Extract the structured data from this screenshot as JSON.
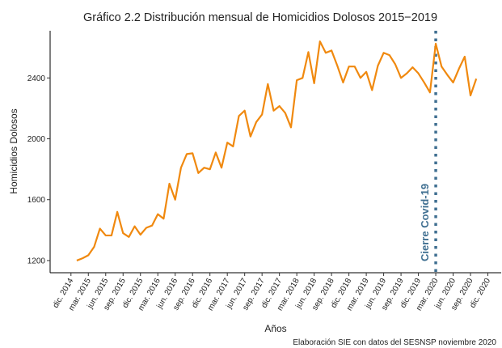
{
  "chart_data": {
    "type": "line",
    "title": "Gráfico 2.2 Distribución mensual de Homicidios Dolosos 2015−2019",
    "x_label": "Años",
    "y_label": "Homicidios Dolosos",
    "caption": "Elaboración SIE con datos del SESNSP noviembre 2020",
    "x": [
      1,
      2,
      3,
      4,
      5,
      6,
      7,
      8,
      9,
      10,
      11,
      12,
      13,
      14,
      15,
      16,
      17,
      18,
      19,
      20,
      21,
      22,
      23,
      24,
      25,
      26,
      27,
      28,
      29,
      30,
      31,
      32,
      33,
      34,
      35,
      36,
      37,
      38,
      39,
      40,
      41,
      42,
      43,
      44,
      45,
      46,
      47,
      48,
      49,
      50,
      51,
      52,
      53,
      54,
      55,
      56,
      57,
      58,
      59,
      60,
      61,
      62,
      63,
      64,
      65,
      66,
      67,
      68,
      69,
      70
    ],
    "series": [
      {
        "name": "Homicidios Dolosos",
        "color": "#f0890f",
        "values": [
          1200,
          1215,
          1235,
          1290,
          1410,
          1365,
          1365,
          1520,
          1380,
          1355,
          1425,
          1370,
          1415,
          1430,
          1505,
          1475,
          1705,
          1600,
          1810,
          1900,
          1905,
          1775,
          1810,
          1800,
          1910,
          1810,
          1975,
          1950,
          2150,
          2185,
          2015,
          2110,
          2160,
          2360,
          2185,
          2215,
          2170,
          2075,
          2385,
          2400,
          2570,
          2365,
          2640,
          2565,
          2580,
          2480,
          2370,
          2475,
          2475,
          2400,
          2440,
          2320,
          2480,
          2565,
          2550,
          2490,
          2400,
          2430,
          2470,
          2430,
          2370,
          2305,
          2625,
          2475,
          2420,
          2370,
          2460,
          2540,
          2285,
          2395
        ]
      }
    ],
    "xlim": [
      -3.6,
      74.3
    ],
    "xticks": [
      {
        "value": 0,
        "label": "dic. 2014"
      },
      {
        "value": 3,
        "label": "mar. 2015"
      },
      {
        "value": 6,
        "label": "jun. 2015"
      },
      {
        "value": 9,
        "label": "sep. 2015"
      },
      {
        "value": 12,
        "label": "dic. 2015"
      },
      {
        "value": 15,
        "label": "mar. 2016"
      },
      {
        "value": 18,
        "label": "jun. 2016"
      },
      {
        "value": 21,
        "label": "sep. 2016"
      },
      {
        "value": 24,
        "label": "dic. 2016"
      },
      {
        "value": 27,
        "label": "mar. 2017"
      },
      {
        "value": 30,
        "label": "jun. 2017"
      },
      {
        "value": 33,
        "label": "sep. 2017"
      },
      {
        "value": 36,
        "label": "dic. 2017"
      },
      {
        "value": 39,
        "label": "mar. 2018"
      },
      {
        "value": 42,
        "label": "jun. 2018"
      },
      {
        "value": 45,
        "label": "sep. 2018"
      },
      {
        "value": 48,
        "label": "dic. 2018"
      },
      {
        "value": 51,
        "label": "mar. 2019"
      },
      {
        "value": 54,
        "label": "jun. 2019"
      },
      {
        "value": 57,
        "label": "sep. 2019"
      },
      {
        "value": 60,
        "label": "dic. 2019"
      },
      {
        "value": 63,
        "label": "mar. 2020"
      },
      {
        "value": 66,
        "label": "jun. 2020"
      },
      {
        "value": 69,
        "label": "sep. 2020"
      },
      {
        "value": 72,
        "label": "dic. 2020"
      }
    ],
    "ylim": [
      1120,
      2710
    ],
    "yticks": [
      1200,
      1600,
      2000,
      2400
    ],
    "grid": false,
    "annotations": [
      {
        "text": "Cierre Covid-19",
        "x": 63,
        "color": "#3f6f91"
      }
    ]
  }
}
